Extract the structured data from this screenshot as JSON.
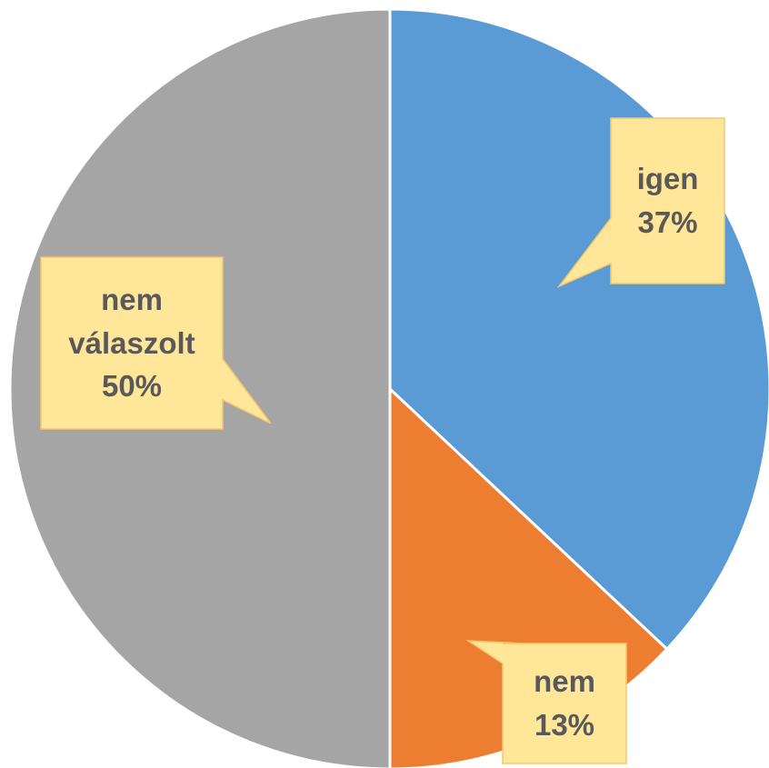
{
  "chart_data": {
    "type": "pie",
    "categories": [
      "igen",
      "nem",
      "nem válaszolt"
    ],
    "values": [
      37,
      13,
      50
    ],
    "value_labels": [
      "37%",
      "13%",
      "50%"
    ],
    "colors": [
      "#5b9bd5",
      "#ed7d31",
      "#a5a5a5"
    ]
  }
}
